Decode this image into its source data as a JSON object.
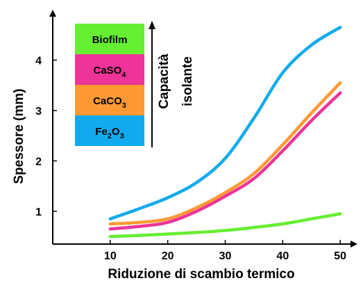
{
  "chart_data": {
    "type": "line",
    "title": "",
    "xlabel": "Riduzione di scambio termico",
    "ylabel": "Spessore (mm)",
    "xlim": [
      0,
      53
    ],
    "ylim": [
      0.35,
      5.0
    ],
    "xticks": [
      10,
      20,
      30,
      40,
      50
    ],
    "yticks": [
      1,
      2,
      3,
      4
    ],
    "grid": false,
    "legend_position": "top-left",
    "side_annotation": [
      "Capacità",
      "isolante"
    ],
    "series": [
      {
        "name": "Biofilm",
        "color": "#66ee33",
        "x": [
          10,
          15,
          20,
          25,
          30,
          35,
          40,
          45,
          50
        ],
        "y": [
          0.5,
          0.52,
          0.55,
          0.58,
          0.62,
          0.68,
          0.75,
          0.85,
          0.95
        ]
      },
      {
        "name": "CaSO4",
        "color": "#ee3399",
        "x": [
          10,
          15,
          20,
          25,
          30,
          35,
          40,
          45,
          50
        ],
        "y": [
          0.65,
          0.7,
          0.78,
          1.0,
          1.3,
          1.65,
          2.2,
          2.8,
          3.35
        ]
      },
      {
        "name": "CaCO3",
        "color": "#ff9933",
        "x": [
          10,
          15,
          20,
          25,
          30,
          35,
          40,
          45,
          50
        ],
        "y": [
          0.75,
          0.78,
          0.85,
          1.07,
          1.37,
          1.75,
          2.32,
          2.95,
          3.55
        ]
      },
      {
        "name": "Fe2O3",
        "color": "#11aaee",
        "x": [
          10,
          15,
          20,
          25,
          30,
          35,
          40,
          45,
          50
        ],
        "y": [
          0.85,
          1.05,
          1.27,
          1.57,
          2.05,
          2.85,
          3.75,
          4.3,
          4.65
        ]
      }
    ],
    "legend_boxes": [
      {
        "base": "Biofilm",
        "sub": "",
        "tail": "",
        "color": "#66ee33"
      },
      {
        "base": "CaSO",
        "sub": "4",
        "tail": "",
        "color": "#ee3399"
      },
      {
        "base": "CaCO",
        "sub": "3",
        "tail": "",
        "color": "#ff9933"
      },
      {
        "base": "Fe",
        "sub": "2",
        "tail": "O",
        "sub2": "3",
        "color": "#11aaee"
      }
    ]
  }
}
